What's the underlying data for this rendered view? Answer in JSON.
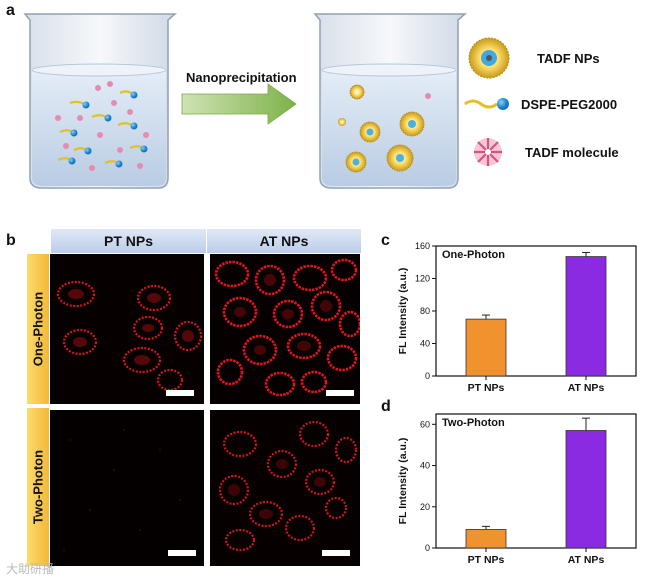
{
  "panel_a": {
    "letter": "a",
    "arrow_label": "Nanoprecipitation",
    "legend": [
      {
        "label": "TADF NPs",
        "icon": "tadf-np-icon"
      },
      {
        "label": "DSPE-PEG2000",
        "icon": "dspe-peg-icon"
      },
      {
        "label": "TADF molecule",
        "icon": "tadf-molecule-icon"
      }
    ]
  },
  "panel_b": {
    "letter": "b",
    "columns": [
      "PT NPs",
      "AT NPs"
    ],
    "rows": [
      "One-Photon",
      "Two-Photon"
    ]
  },
  "chart_data": [
    {
      "type": "bar",
      "panel": "c",
      "title": "One-Photon",
      "ylabel": "FL Intensity (a.u.)",
      "categories": [
        "PT NPs",
        "AT NPs"
      ],
      "values": [
        70,
        147
      ],
      "errors": [
        5,
        5
      ],
      "ylim": [
        0,
        160
      ],
      "yticks": [
        0,
        40,
        80,
        120,
        160
      ],
      "colors": [
        "#f0922e",
        "#8a2be2"
      ]
    },
    {
      "type": "bar",
      "panel": "d",
      "title": "Two-Photon",
      "ylabel": "FL Intensity (a.u.)",
      "categories": [
        "PT NPs",
        "AT NPs"
      ],
      "values": [
        9,
        57
      ],
      "errors": [
        1.5,
        6
      ],
      "ylim": [
        0,
        65
      ],
      "yticks": [
        0,
        20,
        40,
        60
      ],
      "colors": [
        "#f0922e",
        "#8a2be2"
      ]
    }
  ],
  "watermark": "大助研播"
}
